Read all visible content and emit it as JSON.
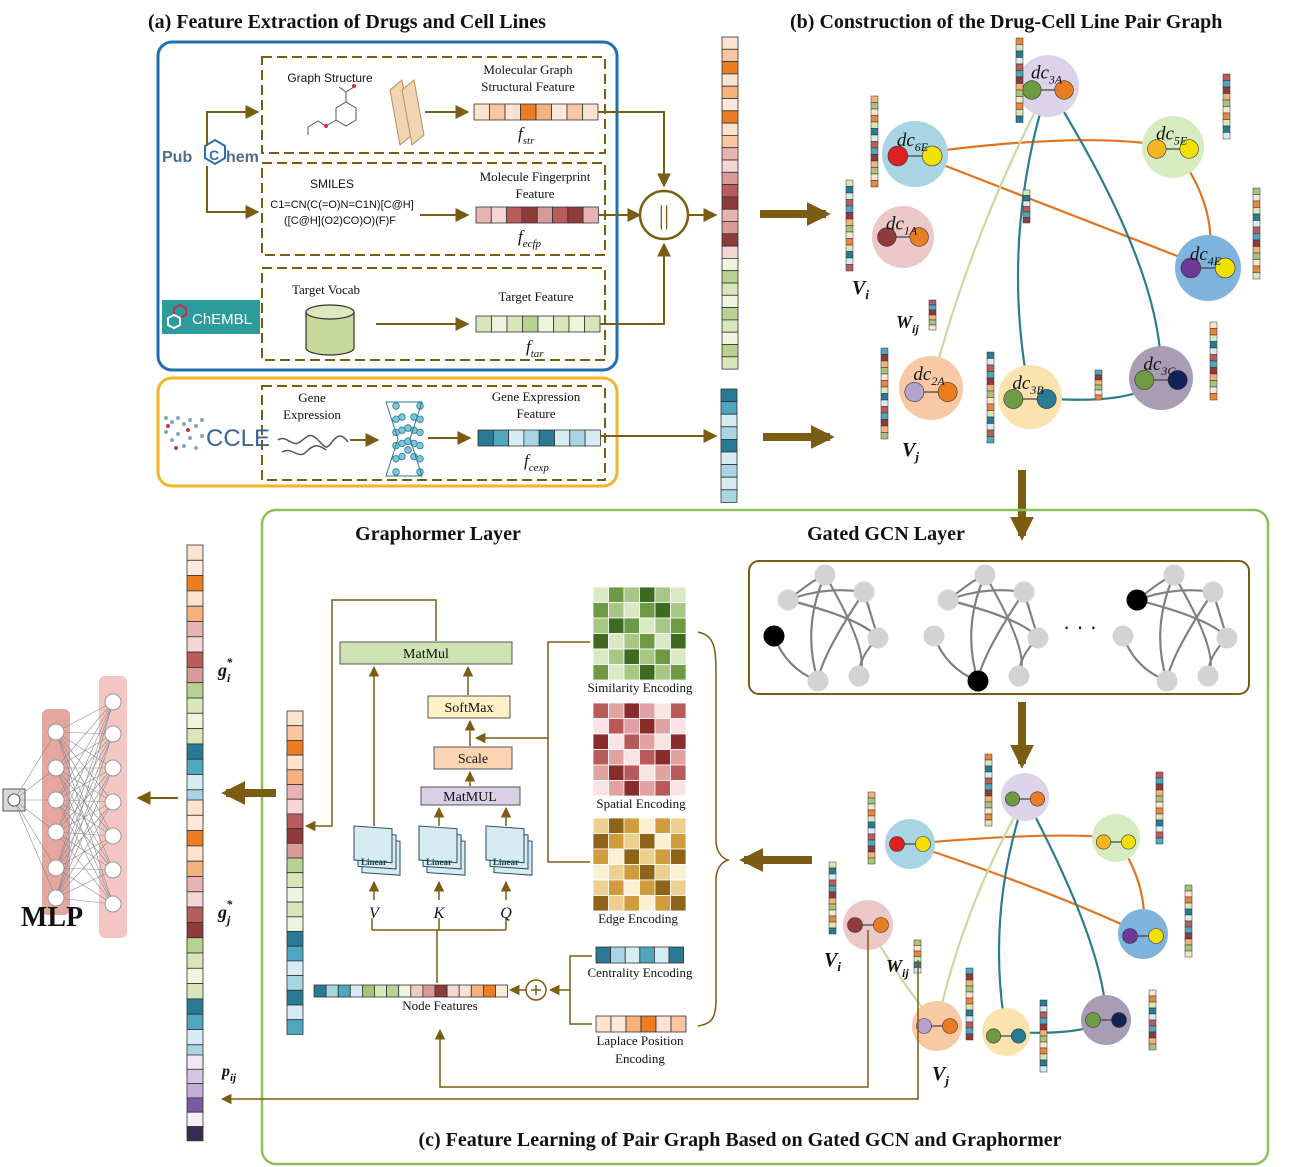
{
  "section_a": {
    "title": "(a)  Feature Extraction of Drugs and Cell Lines",
    "source_pubchem": "PubChem",
    "source_chembl": "ChEMBL",
    "source_ccle": "CCLE",
    "graph_structure": "Graph Structure",
    "mol_graph_feature_1": "Molecular Graph",
    "mol_graph_feature_2": "Structural Feature",
    "f_str_main": "f",
    "f_str_sub": "str",
    "smiles_label": "SMILES",
    "smiles_line1": "C1=CN(C(=O)N=C1N)[C@H]",
    "smiles_line2": "([C@H](O2)CO)O)(F)F",
    "fingerprint_feature_1": "Molecule Fingerprint",
    "fingerprint_feature_2": "Feature",
    "f_ecfp_main": "f",
    "f_ecfp_sub": "ecfp",
    "target_vocab": "Target Vocab",
    "target_feature": "Target Feature",
    "f_tar_main": "f",
    "f_tar_sub": "tar",
    "gene_expr_1": "Gene",
    "gene_expr_2": "Expression",
    "gene_feature_1": "Gene Expression",
    "gene_feature_2": "Feature",
    "f_cexp_main": "f",
    "f_cexp_sub": "cexp",
    "concat_symbol": "||"
  },
  "section_b": {
    "title": "(b)  Construction of the Drug-Cell Line Pair Graph",
    "nodes": [
      {
        "main": "dc",
        "sub": "3A"
      },
      {
        "main": "dc",
        "sub": "6E"
      },
      {
        "main": "dc",
        "sub": "5E"
      },
      {
        "main": "dc",
        "sub": "1A"
      },
      {
        "main": "dc",
        "sub": "4E"
      },
      {
        "main": "dc",
        "sub": "2A"
      },
      {
        "main": "dc",
        "sub": "3B"
      },
      {
        "main": "dc",
        "sub": "3C"
      }
    ],
    "vi_main": "V",
    "vi_sub": "i",
    "vj_main": "V",
    "vj_sub": "j",
    "wij_main": "W",
    "wij_sub": "ij"
  },
  "section_c": {
    "title": "(c) Feature Learning of Pair Graph Based on Gated GCN and Graphormer",
    "graphormer_title": "Graphormer Layer",
    "gated_gcn_title": "Gated GCN Layer",
    "matmul_top": "MatMul",
    "softmax": "SoftMax",
    "scale": "Scale",
    "matmul_bottom": "MatMUL",
    "linear_label": "Linear",
    "v_label": "V",
    "k_label": "K",
    "q_label": "Q",
    "node_features": "Node Features",
    "similarity_encoding": "Similarity Encoding",
    "spatial_encoding": "Spatial Encoding",
    "edge_encoding": "Edge Encoding",
    "centrality_encoding": "Centrality Encoding",
    "laplace_1": "Laplace Position",
    "laplace_2": "Encoding",
    "dots": "· · ·",
    "vi_main": "V",
    "vi_sub": "i",
    "vj_main": "V",
    "vj_sub": "j",
    "wij_main": "W",
    "wij_sub": "ij"
  },
  "outputs": {
    "mlp": "MLP",
    "gi_main": "g",
    "gi_sub": "i",
    "gi_sup": "*",
    "gj_main": "g",
    "gj_sub": "j",
    "gj_sup": "*",
    "pij_main": "p",
    "pij_sub": "ij"
  },
  "colors": {
    "arrow": "#7a5c12",
    "box_blue": "#1f6fb2",
    "box_yellow": "#f3b522",
    "box_green": "#8dc05a",
    "orange_edge": "#e2731e",
    "teal_edge": "#2a7d8c",
    "lightgreen_edge": "#c6dba0"
  }
}
